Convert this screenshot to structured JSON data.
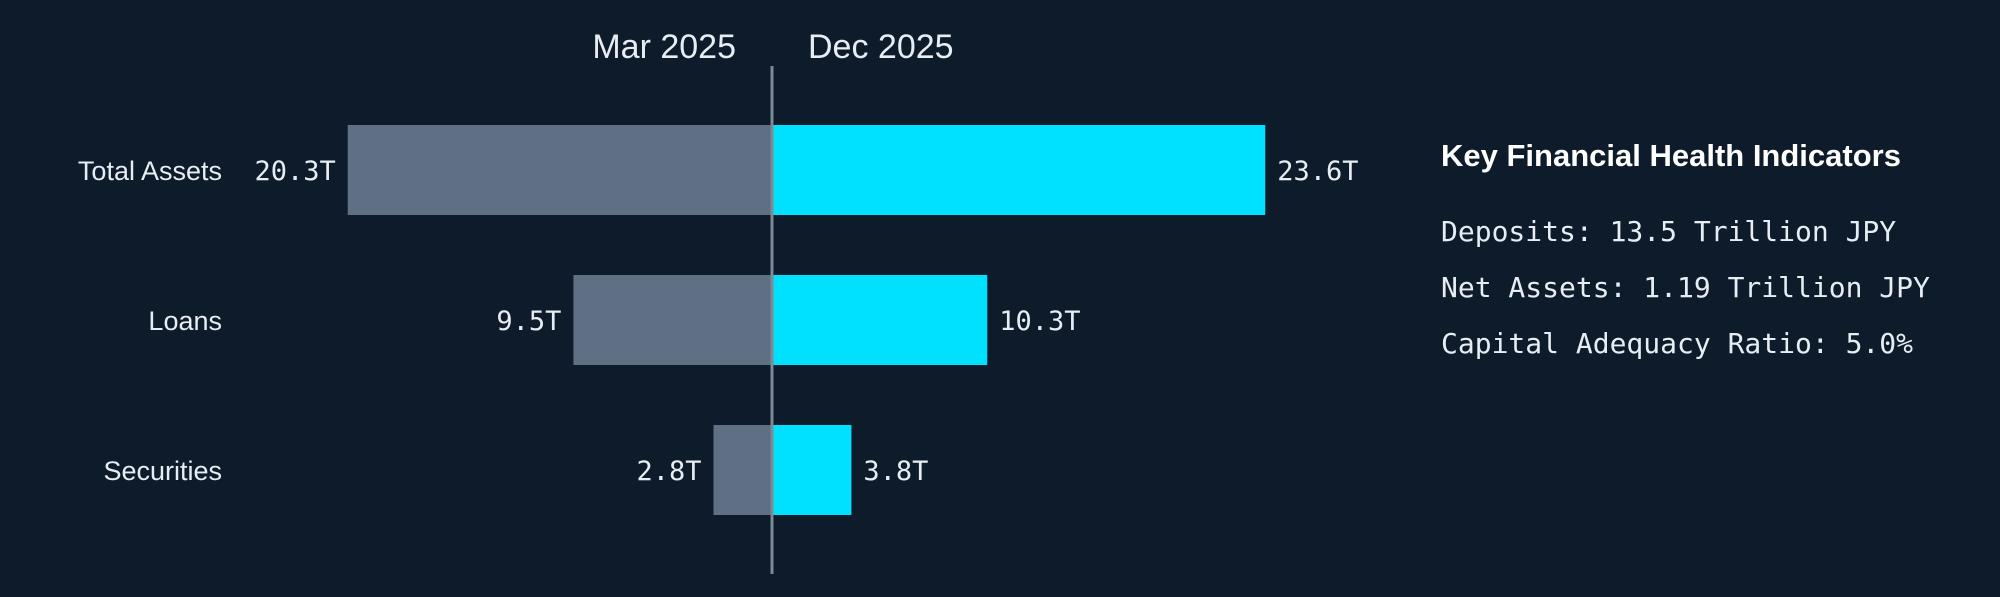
{
  "chart_data": {
    "type": "bar",
    "orientation": "horizontal-butterfly",
    "categories": [
      "Total Assets",
      "Loans",
      "Securities"
    ],
    "series": [
      {
        "name": "Mar 2025",
        "values": [
          20.3,
          9.5,
          2.8
        ],
        "labels": [
          "20.3T",
          "9.5T",
          "2.8T"
        ],
        "color": "#5f6f84"
      },
      {
        "name": "Dec 2025",
        "values": [
          23.6,
          10.3,
          3.8
        ],
        "labels": [
          "23.6T",
          "10.3T",
          "3.8T"
        ],
        "color": "#00e0ff"
      }
    ],
    "unit": "T",
    "grid": false
  },
  "indicators": {
    "title": "Key Financial Health Indicators",
    "items": [
      "Deposits: 13.5 Trillion JPY",
      "Net Assets: 1.19 Trillion JPY",
      "Capital Adequacy Ratio: 5.0%"
    ]
  },
  "colors": {
    "background": "#0e1b2b",
    "axis": "#7f8a97",
    "text": "#e6edf3"
  }
}
